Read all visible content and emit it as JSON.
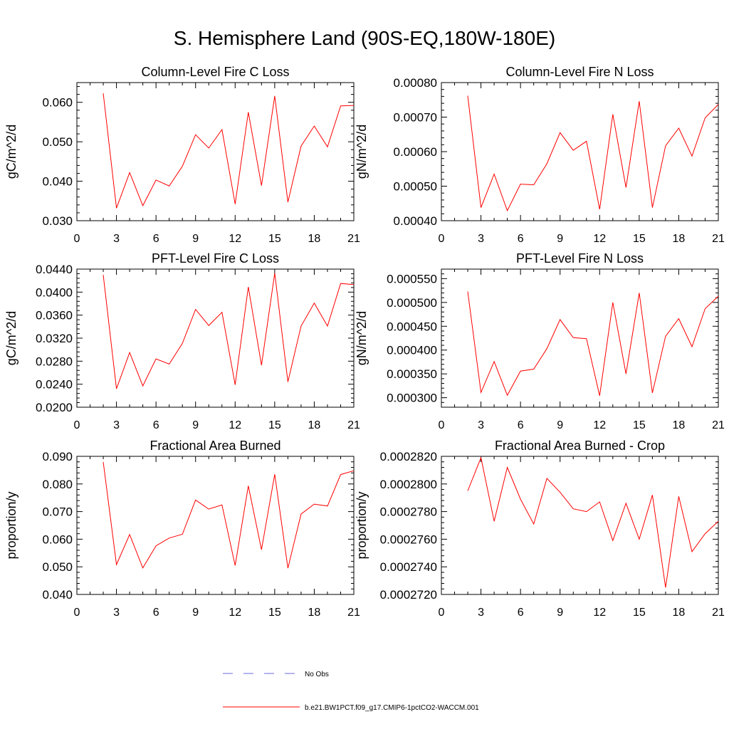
{
  "figure": {
    "title": "S. Hemisphere Land (90S-EQ,180W-180E)"
  },
  "colors": {
    "model_line": "#ff0000",
    "obs_line": "#6a6ad8",
    "axis": "#000000"
  },
  "legend": {
    "position": "bottom-center",
    "items": [
      {
        "label": "No Obs",
        "style": "dashed",
        "color": "#6a6ad8"
      },
      {
        "label": "b.e21.BW1PCT.f09_g17.CMIP6-1pctCO2-WACCM.001",
        "style": "solid",
        "color": "#ff0000"
      }
    ]
  },
  "chart_data": [
    {
      "type": "line",
      "title": "Column-Level Fire C Loss",
      "xlabel": "",
      "ylabel": "gC/m^2/d",
      "xlim": [
        0,
        21
      ],
      "ylim": [
        0.03,
        0.065
      ],
      "xticks": [
        0,
        3,
        6,
        9,
        12,
        15,
        18,
        21
      ],
      "yticks": [
        0.03,
        0.04,
        0.05,
        0.06
      ],
      "ytick_labels": [
        "0.030",
        "0.040",
        "0.050",
        "0.060"
      ],
      "x": [
        2,
        3,
        4,
        5,
        6,
        7,
        8,
        9,
        10,
        11,
        12,
        13,
        14,
        15,
        16,
        17,
        18,
        19,
        20,
        21
      ],
      "series": [
        {
          "name": "b.e21.BW1PCT.f09_g17.CMIP6-1pctCO2-WACCM.001",
          "values": [
            0.0623,
            0.0332,
            0.0422,
            0.0338,
            0.0403,
            0.0388,
            0.0438,
            0.0518,
            0.0484,
            0.0531,
            0.0342,
            0.0575,
            0.0389,
            0.0616,
            0.0347,
            0.0489,
            0.054,
            0.0487,
            0.0591,
            0.0592
          ]
        }
      ]
    },
    {
      "type": "line",
      "title": "Column-Level Fire N Loss",
      "xlabel": "",
      "ylabel": "gN/m^2/d",
      "xlim": [
        0,
        21
      ],
      "ylim": [
        0.0004,
        0.0008
      ],
      "xticks": [
        0,
        3,
        6,
        9,
        12,
        15,
        18,
        21
      ],
      "yticks": [
        0.0004,
        0.0005,
        0.0006,
        0.0007,
        0.0008
      ],
      "ytick_labels": [
        "0.00040",
        "0.00050",
        "0.00060",
        "0.00070",
        "0.00080"
      ],
      "x": [
        2,
        3,
        4,
        5,
        6,
        7,
        8,
        9,
        10,
        11,
        12,
        13,
        14,
        15,
        16,
        17,
        18,
        19,
        20,
        21
      ],
      "series": [
        {
          "name": "b.e21.BW1PCT.f09_g17.CMIP6-1pctCO2-WACCM.001",
          "values": [
            0.000762,
            0.000438,
            0.000535,
            0.000429,
            0.000506,
            0.000504,
            0.000565,
            0.000655,
            0.000604,
            0.00063,
            0.000433,
            0.000708,
            0.000496,
            0.000746,
            0.000438,
            0.000617,
            0.000668,
            0.000587,
            0.000698,
            0.000737
          ]
        }
      ]
    },
    {
      "type": "line",
      "title": "PFT-Level Fire C Loss",
      "xlabel": "",
      "ylabel": "gC/m^2/d",
      "xlim": [
        0,
        21
      ],
      "ylim": [
        0.02,
        0.044
      ],
      "xticks": [
        0,
        3,
        6,
        9,
        12,
        15,
        18,
        21
      ],
      "yticks": [
        0.02,
        0.024,
        0.028,
        0.032,
        0.036,
        0.04,
        0.044
      ],
      "ytick_labels": [
        "0.0200",
        "0.0240",
        "0.0280",
        "0.0320",
        "0.0360",
        "0.0400",
        "0.0440"
      ],
      "x": [
        2,
        3,
        4,
        5,
        6,
        7,
        8,
        9,
        10,
        11,
        12,
        13,
        14,
        15,
        16,
        17,
        18,
        19,
        20,
        21
      ],
      "series": [
        {
          "name": "b.e21.BW1PCT.f09_g17.CMIP6-1pctCO2-WACCM.001",
          "values": [
            0.043,
            0.0232,
            0.0295,
            0.0237,
            0.0284,
            0.0275,
            0.0311,
            0.037,
            0.0342,
            0.0365,
            0.0239,
            0.0409,
            0.0273,
            0.0433,
            0.0244,
            0.0341,
            0.0381,
            0.0341,
            0.0415,
            0.0413
          ]
        }
      ]
    },
    {
      "type": "line",
      "title": "PFT-Level Fire N Loss",
      "xlabel": "",
      "ylabel": "gN/m^2/d",
      "xlim": [
        0,
        21
      ],
      "ylim": [
        0.00028,
        0.00057
      ],
      "xticks": [
        0,
        3,
        6,
        9,
        12,
        15,
        18,
        21
      ],
      "yticks": [
        0.0003,
        0.00035,
        0.0004,
        0.00045,
        0.0005,
        0.00055
      ],
      "ytick_labels": [
        "0.000300",
        "0.000350",
        "0.000400",
        "0.000450",
        "0.000500",
        "0.000550"
      ],
      "x": [
        2,
        3,
        4,
        5,
        6,
        7,
        8,
        9,
        10,
        11,
        12,
        13,
        14,
        15,
        16,
        17,
        18,
        19,
        20,
        21
      ],
      "series": [
        {
          "name": "b.e21.BW1PCT.f09_g17.CMIP6-1pctCO2-WACCM.001",
          "values": [
            0.000523,
            0.000311,
            0.000376,
            0.000305,
            0.000356,
            0.00036,
            0.000403,
            0.000464,
            0.000426,
            0.000424,
            0.000304,
            0.0005,
            0.00035,
            0.00052,
            0.00031,
            0.000429,
            0.000466,
            0.000407,
            0.000487,
            0.000513
          ]
        }
      ]
    },
    {
      "type": "line",
      "title": "Fractional Area Burned",
      "xlabel": "",
      "ylabel": "proportion/y",
      "xlim": [
        0,
        21
      ],
      "ylim": [
        0.04,
        0.09
      ],
      "xticks": [
        0,
        3,
        6,
        9,
        12,
        15,
        18,
        21
      ],
      "yticks": [
        0.04,
        0.05,
        0.06,
        0.07,
        0.08,
        0.09
      ],
      "ytick_labels": [
        "0.040",
        "0.050",
        "0.060",
        "0.070",
        "0.080",
        "0.090"
      ],
      "x": [
        2,
        3,
        4,
        5,
        6,
        7,
        8,
        9,
        10,
        11,
        12,
        13,
        14,
        15,
        16,
        17,
        18,
        19,
        20,
        21
      ],
      "series": [
        {
          "name": "b.e21.BW1PCT.f09_g17.CMIP6-1pctCO2-WACCM.001",
          "values": [
            0.088,
            0.0508,
            0.0617,
            0.0496,
            0.0576,
            0.0604,
            0.0618,
            0.0742,
            0.0709,
            0.0724,
            0.0505,
            0.0793,
            0.0562,
            0.0835,
            0.0495,
            0.0691,
            0.0727,
            0.072,
            0.0834,
            0.0848
          ]
        }
      ]
    },
    {
      "type": "line",
      "title": "Fractional Area Burned - Crop",
      "xlabel": "",
      "ylabel": "proportion/y",
      "xlim": [
        0,
        21
      ],
      "ylim": [
        0.000272,
        0.000282
      ],
      "xticks": [
        0,
        3,
        6,
        9,
        12,
        15,
        18,
        21
      ],
      "yticks": [
        0.000272,
        0.000274,
        0.000276,
        0.000278,
        0.00028,
        0.000282
      ],
      "ytick_labels": [
        "0.0002720",
        "0.0002740",
        "0.0002760",
        "0.0002780",
        "0.0002800",
        "0.0002820"
      ],
      "x": [
        2,
        3,
        4,
        5,
        6,
        7,
        8,
        9,
        10,
        11,
        12,
        13,
        14,
        15,
        16,
        17,
        18,
        19,
        20,
        21
      ],
      "series": [
        {
          "name": "b.e21.BW1PCT.f09_g17.CMIP6-1pctCO2-WACCM.001",
          "values": [
            0.0002795,
            0.0002819,
            0.0002773,
            0.0002812,
            0.0002789,
            0.0002771,
            0.0002804,
            0.0002794,
            0.0002782,
            0.000278,
            0.0002787,
            0.0002759,
            0.0002786,
            0.000276,
            0.0002792,
            0.0002725,
            0.0002791,
            0.0002751,
            0.0002764,
            0.0002773
          ]
        }
      ]
    }
  ]
}
